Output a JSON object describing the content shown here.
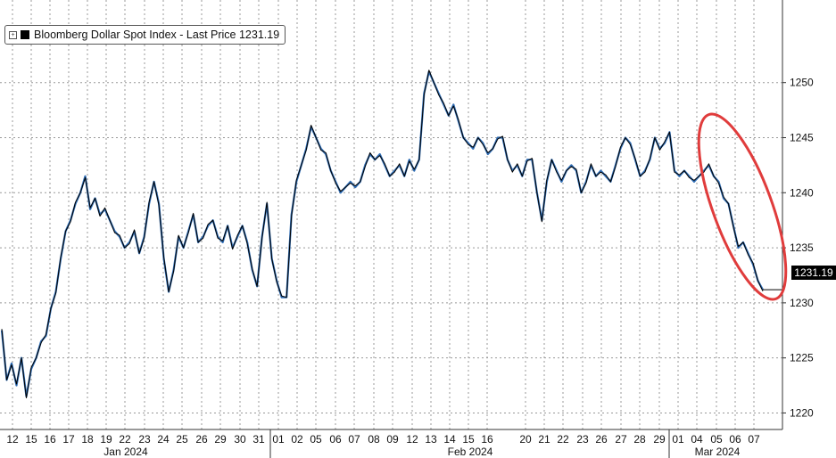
{
  "legend": {
    "label": "Bloomberg Dollar Spot Index - Last Price 1231.19",
    "swatch_color": "#000000",
    "expand_icon": "plus-box-icon"
  },
  "last_price_tag": "1231.19",
  "colors": {
    "line_dark": "#000000",
    "line_blue": "#2f6db5",
    "annotation": "#e03c3c",
    "grid": "#999999"
  },
  "chart_data": {
    "type": "line",
    "title": "",
    "xlabel": "",
    "ylabel": "",
    "ylim": [
      1218.5,
      1257.5
    ],
    "yticks": [
      1220,
      1225,
      1230,
      1235,
      1240,
      1245,
      1250
    ],
    "grid": true,
    "legend_position": "top-left",
    "x_day_labels": [
      "12",
      "15",
      "16",
      "17",
      "18",
      "19",
      "22",
      "23",
      "24",
      "25",
      "26",
      "29",
      "30",
      "31",
      "01",
      "02",
      "05",
      "06",
      "07",
      "08",
      "09",
      "12",
      "13",
      "14",
      "15",
      "16",
      "20",
      "21",
      "22",
      "23",
      "26",
      "27",
      "28",
      "29",
      "01",
      "04",
      "05",
      "06",
      "07"
    ],
    "month_labels": [
      "Jan 2024",
      "Feb 2024",
      "Mar 2024"
    ],
    "series": [
      {
        "values": [
          1227.5,
          1223,
          1224.5,
          1222.5,
          1225,
          1221.5,
          1224,
          1225,
          1226.5,
          1227,
          1229.5,
          1231,
          1234,
          1236.5,
          1237.5,
          1239,
          1240,
          1241.5,
          1238.5,
          1239.5,
          1238,
          1238.5,
          1237.5,
          1236.5,
          1236,
          1235,
          1235.5,
          1236.5,
          1234.5,
          1236,
          1239,
          1241,
          1239,
          1234,
          1231,
          1233,
          1236,
          1235,
          1236.5,
          1238,
          1235.5,
          1236,
          1237,
          1237.5,
          1236,
          1235.5,
          1237,
          1235,
          1236,
          1237,
          1235.5,
          1233,
          1231.5,
          1236,
          1239,
          1234,
          1232,
          1230.5,
          1230.5,
          1238,
          1241,
          1242.5,
          1244,
          1246,
          1245,
          1244,
          1243.5,
          1242,
          1241,
          1240,
          1240.5,
          1241,
          1240.5,
          1241,
          1242.5,
          1243.5,
          1243,
          1243.5,
          1242.5,
          1241.5,
          1242,
          1242.5,
          1241.5,
          1243,
          1242,
          1243,
          1249,
          1251,
          1250,
          1249,
          1248,
          1247,
          1248,
          1246.5,
          1245,
          1244.5,
          1244,
          1245,
          1244.5,
          1243.5,
          1244,
          1245,
          1245,
          1243,
          1242,
          1242.5,
          1241.5,
          1243,
          1243,
          1240,
          1237.5,
          1241,
          1243,
          1242,
          1241,
          1242,
          1242.5,
          1242,
          1240,
          1241,
          1242.5,
          1241.5,
          1242,
          1241.5,
          1241,
          1242.5,
          1244,
          1245,
          1244.5,
          1243,
          1241.5,
          1242,
          1243,
          1245,
          1244,
          1244.5,
          1245.5,
          1242,
          1241.5,
          1242,
          1241.5,
          1241,
          1241.5,
          1242,
          1242.5,
          1241.5,
          1241,
          1239.5,
          1239,
          1237,
          1235,
          1235.5,
          1234.5,
          1233.5,
          1232,
          1231.19
        ]
      }
    ]
  }
}
